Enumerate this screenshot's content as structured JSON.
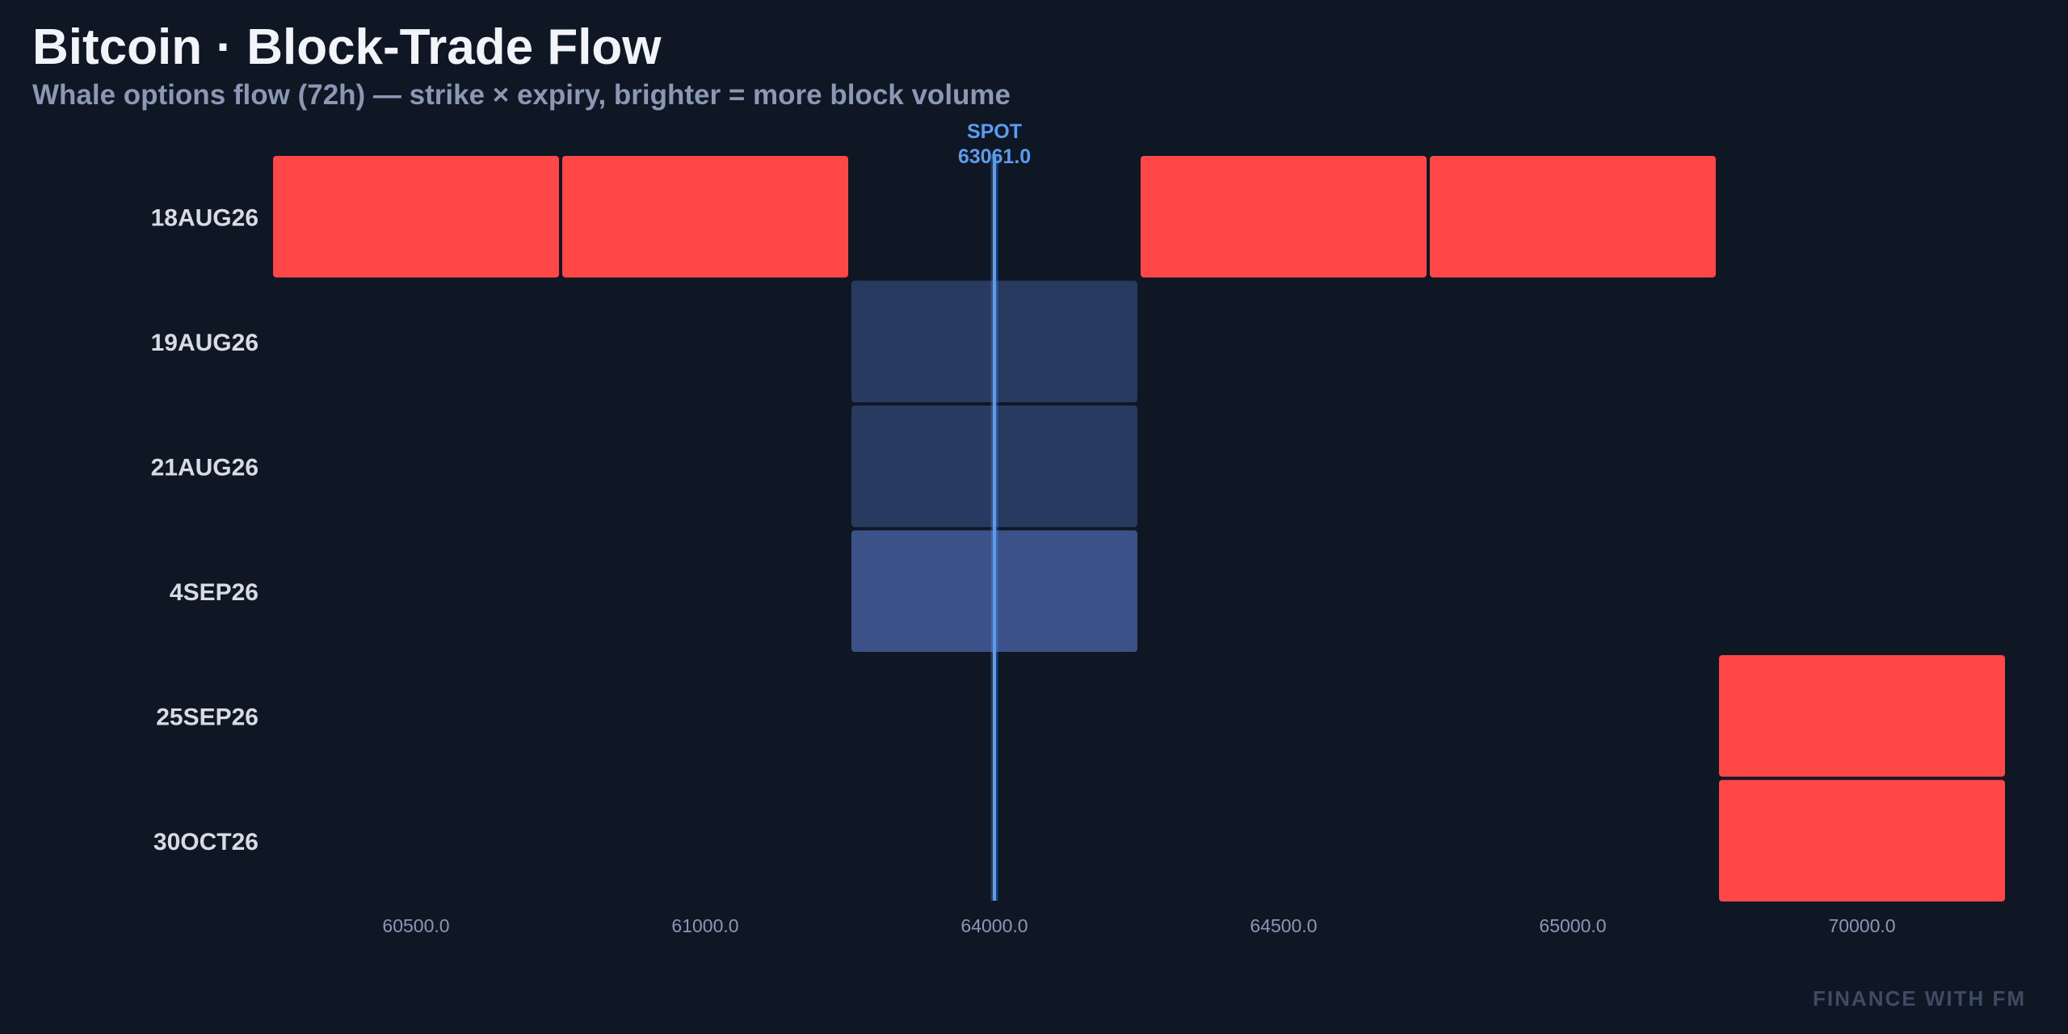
{
  "header": {
    "title": "Bitcoin · Block-Trade Flow",
    "subtitle": "Whale options flow (72h) — strike × expiry, brighter = more block volume"
  },
  "watermark": "FINANCE WITH FM",
  "colors": {
    "background": "#0f1624",
    "hot": "#ff4747",
    "low": "#293a60",
    "mid": "#3b5187",
    "spot": "#5b9cf0",
    "label": "#d6dbe5",
    "tick": "#8b98b4"
  },
  "chart_data": {
    "type": "heatmap",
    "title": "Bitcoin · Block-Trade Flow",
    "subtitle": "Whale options flow (72h) — strike × expiry, brighter = more block volume",
    "x_categories": [
      "60500.0",
      "61000.0",
      "64000.0",
      "64500.0",
      "65000.0",
      "70000.0"
    ],
    "y_categories": [
      "18AUG26",
      "19AUG26",
      "21AUG26",
      "4SEP26",
      "25SEP26",
      "30OCT26"
    ],
    "cells": [
      {
        "expiry": "18AUG26",
        "strike": "60500.0",
        "intensity": 1.0
      },
      {
        "expiry": "18AUG26",
        "strike": "61000.0",
        "intensity": 1.0
      },
      {
        "expiry": "18AUG26",
        "strike": "64500.0",
        "intensity": 1.0
      },
      {
        "expiry": "18AUG26",
        "strike": "65000.0",
        "intensity": 1.0
      },
      {
        "expiry": "19AUG26",
        "strike": "64000.0",
        "intensity": 0.1
      },
      {
        "expiry": "21AUG26",
        "strike": "64000.0",
        "intensity": 0.1
      },
      {
        "expiry": "4SEP26",
        "strike": "64000.0",
        "intensity": 0.25
      },
      {
        "expiry": "25SEP26",
        "strike": "70000.0",
        "intensity": 1.0
      },
      {
        "expiry": "30OCT26",
        "strike": "70000.0",
        "intensity": 1.0
      }
    ],
    "spot": {
      "label": "SPOT",
      "value_text": "63061.0",
      "position_between": [
        "61000.0",
        "64000.0"
      ],
      "relative_to_64000": 0.0
    },
    "grid": false,
    "legend": "none"
  }
}
